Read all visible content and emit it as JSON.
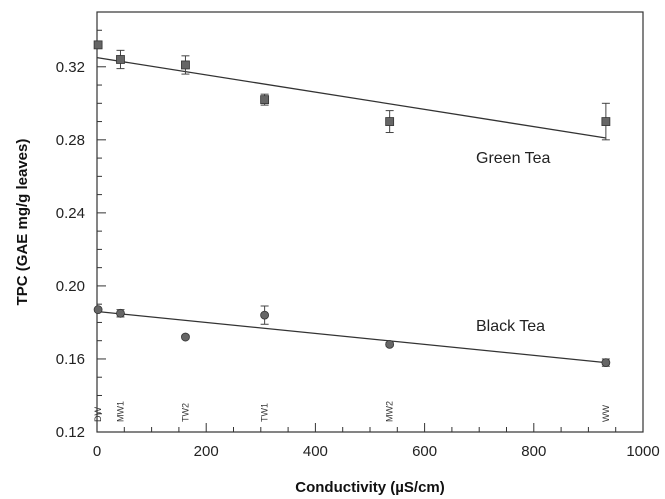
{
  "chart_data": {
    "type": "scatter",
    "xlabel": "Conductivity (µS/cm)",
    "ylabel": "TPC (GAE mg/g leaves)",
    "xlim": [
      0,
      1000
    ],
    "ylim": [
      0.12,
      0.35
    ],
    "x_ticks": [
      0,
      200,
      400,
      600,
      800,
      1000
    ],
    "y_ticks": [
      0.12,
      0.16,
      0.2,
      0.24,
      0.28,
      0.32
    ],
    "y_tick_labels": [
      "0.12",
      "0.16",
      "0.20",
      "0.24",
      "0.28",
      "0.32"
    ],
    "grid": false,
    "sample_labels": [
      {
        "text": "DW",
        "x": 2
      },
      {
        "text": "MW1",
        "x": 43
      },
      {
        "text": "TW2",
        "x": 162
      },
      {
        "text": "TW1",
        "x": 307
      },
      {
        "text": "MW2",
        "x": 536
      },
      {
        "text": "WW",
        "x": 932
      }
    ],
    "series": [
      {
        "name": "Green Tea",
        "marker": "square",
        "color": "#666666",
        "points": [
          {
            "x": 2,
            "y": 0.332,
            "err": 0.0
          },
          {
            "x": 43,
            "y": 0.324,
            "err": 0.005
          },
          {
            "x": 162,
            "y": 0.321,
            "err": 0.005
          },
          {
            "x": 307,
            "y": 0.302,
            "err": 0.003
          },
          {
            "x": 536,
            "y": 0.29,
            "err": 0.006
          },
          {
            "x": 932,
            "y": 0.29,
            "err": 0.01
          }
        ],
        "trend": {
          "x0": 0,
          "y0": 0.325,
          "x1": 932,
          "y1": 0.281
        }
      },
      {
        "name": "Black Tea",
        "marker": "circle",
        "color": "#666666",
        "points": [
          {
            "x": 2,
            "y": 0.187,
            "err": 0.0
          },
          {
            "x": 43,
            "y": 0.185,
            "err": 0.002
          },
          {
            "x": 162,
            "y": 0.172,
            "err": 0.001
          },
          {
            "x": 307,
            "y": 0.184,
            "err": 0.005
          },
          {
            "x": 536,
            "y": 0.168,
            "err": 0.001
          },
          {
            "x": 932,
            "y": 0.158,
            "err": 0.002
          }
        ],
        "trend": {
          "x0": 0,
          "y0": 0.186,
          "x1": 932,
          "y1": 0.158
        }
      }
    ]
  }
}
